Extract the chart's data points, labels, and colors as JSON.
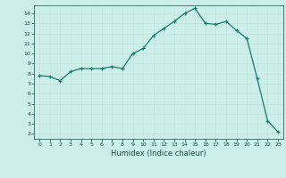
{
  "x": [
    0,
    1,
    2,
    3,
    4,
    5,
    6,
    7,
    8,
    9,
    10,
    11,
    12,
    13,
    14,
    15,
    16,
    17,
    18,
    19,
    20,
    21,
    22,
    23
  ],
  "y": [
    7.8,
    7.7,
    7.3,
    8.2,
    8.5,
    8.5,
    8.5,
    8.7,
    8.5,
    10.0,
    10.5,
    11.8,
    12.5,
    13.2,
    14.0,
    14.5,
    13.0,
    12.9,
    13.2,
    12.3,
    11.5,
    7.5,
    3.3,
    2.2
  ],
  "line_color": "#1a7a6e",
  "bg_color": "#cceee8",
  "grid_color": "#c4e4de",
  "xlabel": "Humidex (Indice chaleur)",
  "xlim": [
    -0.5,
    23.5
  ],
  "ylim": [
    1.5,
    14.8
  ],
  "yticks": [
    2,
    3,
    4,
    5,
    6,
    7,
    8,
    9,
    10,
    11,
    12,
    13,
    14
  ],
  "xticks": [
    0,
    1,
    2,
    3,
    4,
    5,
    6,
    7,
    8,
    9,
    10,
    11,
    12,
    13,
    14,
    15,
    16,
    17,
    18,
    19,
    20,
    21,
    22,
    23
  ],
  "font_color": "#1a4a40",
  "marker": "+"
}
